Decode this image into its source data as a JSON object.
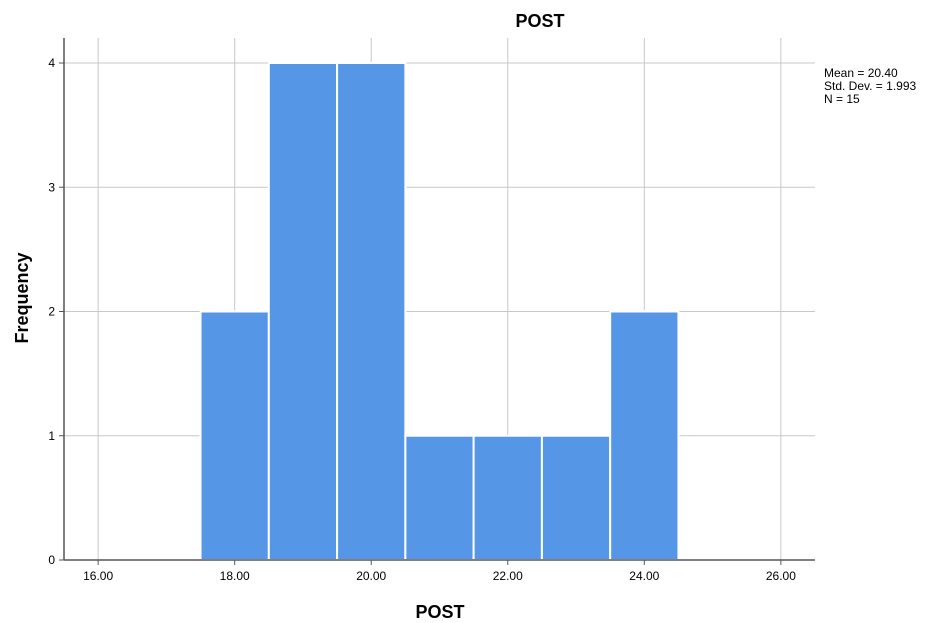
{
  "chart_data": {
    "type": "bar",
    "title": "POST",
    "xlabel": "POST",
    "ylabel": "Frequency",
    "xlim": [
      15.5,
      26.5
    ],
    "ylim": [
      0,
      4
    ],
    "xticks": [
      16,
      18,
      20,
      22,
      24,
      26
    ],
    "xtick_labels": [
      "16.00",
      "18.00",
      "20.00",
      "22.00",
      "24.00",
      "26.00"
    ],
    "yticks": [
      0,
      1,
      2,
      3,
      4
    ],
    "ytick_labels": [
      "0",
      "1",
      "2",
      "3",
      "4"
    ],
    "bin_width": 1,
    "bins": [
      {
        "center": 18,
        "count": 2
      },
      {
        "center": 19,
        "count": 4
      },
      {
        "center": 20,
        "count": 4
      },
      {
        "center": 21,
        "count": 1
      },
      {
        "center": 22,
        "count": 1
      },
      {
        "center": 23,
        "count": 1
      },
      {
        "center": 24,
        "count": 2
      }
    ],
    "grid": true,
    "bar_color": "#5596E6",
    "stats": {
      "mean": "Mean = 20.40",
      "std_dev": "Std. Dev. = 1.993",
      "n": "N = 15"
    }
  }
}
